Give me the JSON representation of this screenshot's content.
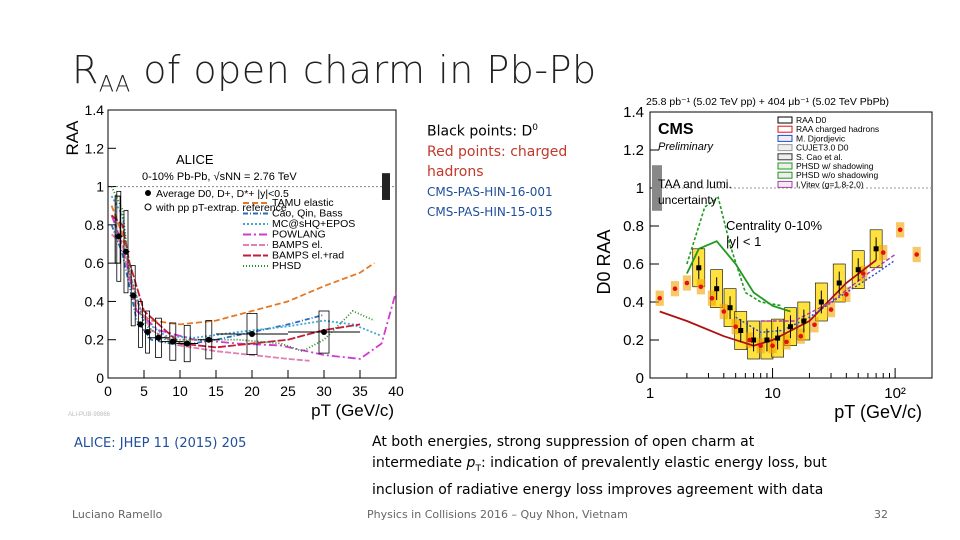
{
  "slide": {
    "title_main": "R",
    "title_sub": "AA",
    "title_rest": " of open charm in Pb-Pb",
    "notes": {
      "black_label": "Black points: D",
      "black_sup": "0",
      "red_label_1": "Red points: charged",
      "red_label_2": "hadrons",
      "ref1": "CMS-PAS-HIN-16-001",
      "ref2": "CMS-PAS-HIN-15-015"
    },
    "alice_ref": "ALICE: JHEP 11 (2015) 205",
    "summary_1": "At both energies, strong suppression of open charm at",
    "summary_2a": "intermediate ",
    "summary_2p": "p",
    "summary_2t": "T",
    "summary_2b": ": indication of prevalently elastic energy loss, but",
    "summary_3": "inclusion of radiative energy loss improves agreement with data",
    "footer_author": "Luciano Ramello",
    "footer_conf": "Physics in Collisions 2016 – Quy Nhon, Vietnam",
    "footer_page": "32",
    "alice_watermark": "ALI-PUB-99866"
  },
  "colors": {
    "tamu": "#e87722",
    "cao": "#2a6ebb",
    "mc": "#3fa7d6",
    "powlang": "#d13bd1",
    "bamps_el": "#e07fb0",
    "bamps_rad": "#c41d3a",
    "phsd": "#2b8a2b",
    "cms_red": "#e01010",
    "cms_green": "#1e9a1e",
    "cms_yellow": "#ffd700"
  },
  "chart_data": [
    {
      "type": "scatter",
      "title": "ALICE",
      "subtitle": "0-10% Pb-Pb, √sNN = 2.76 TeV",
      "xlabel": "pT (GeV/c)",
      "ylabel": "RAA",
      "xlim": [
        0,
        40
      ],
      "ylim": [
        0,
        1.4
      ],
      "xticks": [
        "0",
        "5",
        "10",
        "15",
        "20",
        "25",
        "30",
        "35",
        "40"
      ],
      "yticks": [
        "0",
        "0.2",
        "0.4",
        "0.6",
        "0.8",
        "1",
        "1.2",
        "1.4"
      ],
      "legend": [
        {
          "label": "Average D0, D+, D*+ |y|<0.5",
          "marker": "filled-circle"
        },
        {
          "label": "with pp pT-extrap. reference",
          "marker": "open-circle"
        }
      ],
      "model_legend": [
        "TAMU elastic",
        "Cao, Qin, Bass",
        "MC@sHQ+EPOS",
        "POWLANG",
        "BAMPS el.",
        "BAMPS el.+rad",
        "PHSD"
      ],
      "series": [
        {
          "name": "Average D0, D+, D*+",
          "x": [
            1.5,
            2.5,
            3.5,
            4.5,
            5.5,
            7,
            9,
            11,
            14,
            20,
            30
          ],
          "y": [
            0.74,
            0.66,
            0.43,
            0.28,
            0.24,
            0.21,
            0.19,
            0.18,
            0.2,
            0.23,
            0.24
          ]
        }
      ]
    },
    {
      "type": "scatter",
      "title": "CMS",
      "subtitle": "Preliminary",
      "header": "25.8 pb⁻¹ (5.02 TeV pp) + 404 μb⁻¹ (5.02 TeV PbPb)",
      "annotations": [
        "TAA and lumi.",
        "uncertainty",
        "Centrality 0-10%",
        "|y| < 1"
      ],
      "xlabel": "pT (GeV/c)",
      "ylabel": "D0 RAA",
      "xscale": "log",
      "xlim": [
        1,
        200
      ],
      "ylim": [
        0,
        1.4
      ],
      "xticks": [
        "1",
        "10",
        "10²"
      ],
      "yticks": [
        "0",
        "0.2",
        "0.4",
        "0.6",
        "0.8",
        "1",
        "1.2",
        "1.4"
      ],
      "legend": [
        "RAA D0",
        "RAA charged hadrons",
        "M. Djordjevic",
        "CUJET3.0 D0",
        "S. Cao et al.",
        "PHSD w/ shadowing",
        "PHSD w/o shadowing",
        "I.Vitev (g=1.8-2.0)"
      ],
      "series": [
        {
          "name": "RAA D0",
          "x": [
            2.5,
            3.5,
            4.5,
            5.5,
            7,
            9,
            11,
            14,
            18,
            25,
            35,
            50,
            70
          ],
          "y": [
            0.58,
            0.47,
            0.37,
            0.25,
            0.2,
            0.2,
            0.21,
            0.27,
            0.3,
            0.4,
            0.5,
            0.57,
            0.68
          ]
        },
        {
          "name": "RAA charged hadrons",
          "x": [
            1.2,
            1.6,
            2,
            2.6,
            3.2,
            4,
            5,
            6.5,
            8,
            10,
            13,
            17,
            22,
            30,
            40,
            55,
            80,
            110,
            150
          ],
          "y": [
            0.42,
            0.47,
            0.5,
            0.48,
            0.42,
            0.35,
            0.27,
            0.2,
            0.17,
            0.17,
            0.19,
            0.22,
            0.28,
            0.36,
            0.44,
            0.55,
            0.66,
            0.78,
            0.65
          ]
        }
      ]
    }
  ]
}
